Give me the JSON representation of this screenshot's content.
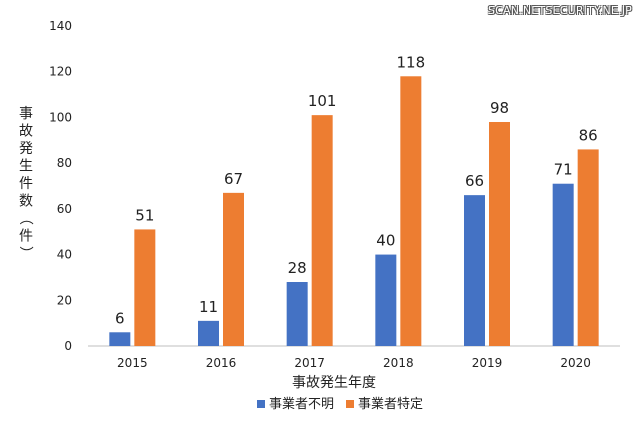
{
  "watermark": "SCAN.NETSECURITY.NE.JP",
  "chart_data": {
    "type": "bar",
    "categories": [
      "2015",
      "2016",
      "2017",
      "2018",
      "2019",
      "2020"
    ],
    "series": [
      {
        "name": "事業者不明",
        "values": [
          6,
          11,
          28,
          40,
          66,
          71
        ],
        "color": "#4472C4"
      },
      {
        "name": "事業者特定",
        "values": [
          51,
          67,
          101,
          118,
          98,
          86
        ],
        "color": "#ED7D31"
      }
    ],
    "title": "",
    "xlabel": "事故発生年度",
    "ylabel": "事故発生件数（件）",
    "ylim": [
      0,
      140
    ],
    "yticks": [
      0,
      20,
      40,
      60,
      80,
      100,
      120,
      140
    ],
    "grid": false,
    "legend_position": "bottom"
  }
}
